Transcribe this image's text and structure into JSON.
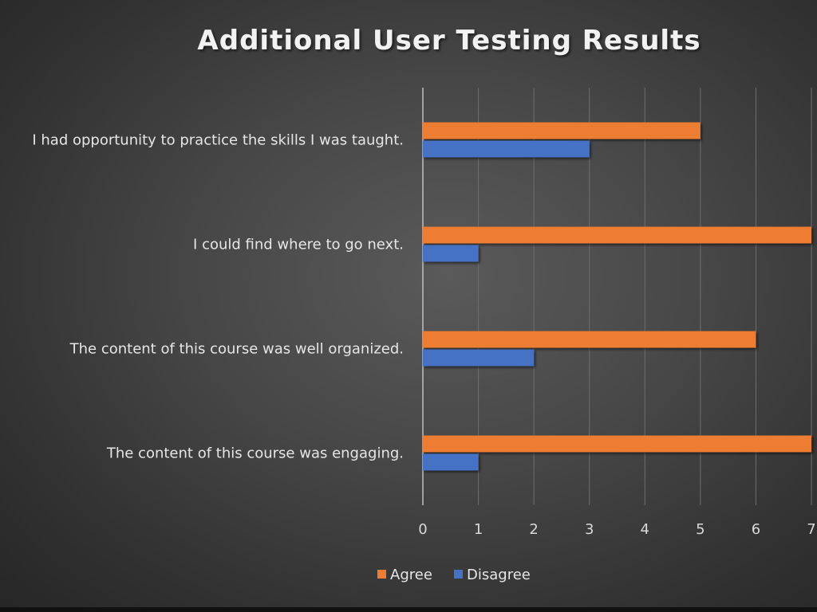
{
  "chart_data": {
    "type": "bar",
    "orientation": "horizontal",
    "title": "Additional User Testing Results",
    "categories": [
      "I had opportunity to practice the skills I was taught.",
      "I could find where to go next.",
      "The content of this course was well organized.",
      "The content of this course was engaging."
    ],
    "series": [
      {
        "name": "Agree",
        "color": "#ed7d31",
        "values": [
          5,
          7,
          6,
          7
        ]
      },
      {
        "name": "Disagree",
        "color": "#4472c4",
        "values": [
          3,
          1,
          2,
          1
        ]
      }
    ],
    "xlim": [
      0,
      7
    ],
    "xticks": [
      "0",
      "1",
      "2",
      "3",
      "4",
      "5",
      "6",
      "7"
    ],
    "grid": true,
    "legend": "bottom"
  }
}
